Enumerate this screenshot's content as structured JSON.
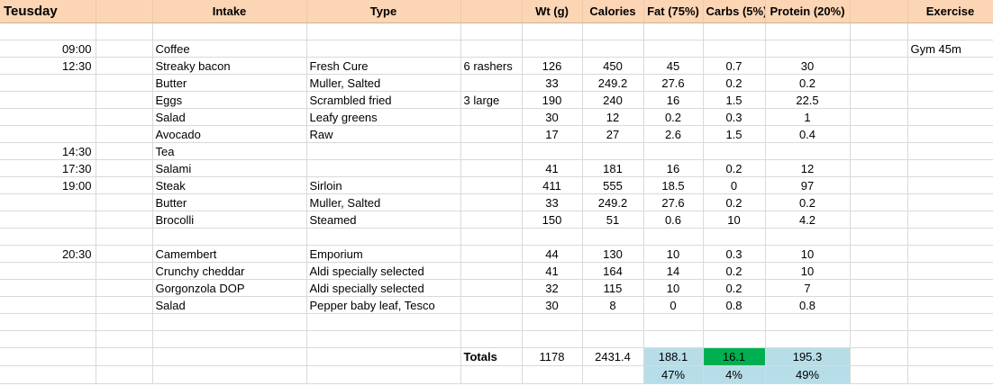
{
  "header": {
    "day": "Teusday",
    "intake": "Intake",
    "type": "Type",
    "wt": "Wt (g)",
    "calories": "Calories",
    "fat": "Fat (75%)",
    "carbs": "Carbs (5%)",
    "protein": "Protein (20%)",
    "exercise": "Exercise"
  },
  "rows": [
    {
      "time": "",
      "intake": "",
      "type": "",
      "qty": "",
      "wt": "",
      "cal": "",
      "fat": "",
      "carbs": "",
      "protein": "",
      "exercise": ""
    },
    {
      "time": "09:00",
      "intake": "Coffee",
      "type": "",
      "qty": "",
      "wt": "",
      "cal": "",
      "fat": "",
      "carbs": "",
      "protein": "",
      "exercise": "Gym 45m"
    },
    {
      "time": "12:30",
      "intake": "Streaky bacon",
      "type": "Fresh Cure",
      "qty": "6 rashers",
      "wt": "126",
      "cal": "450",
      "fat": "45",
      "carbs": "0.7",
      "protein": "30",
      "exercise": ""
    },
    {
      "time": "",
      "intake": "Butter",
      "type": "Muller, Salted",
      "qty": "",
      "wt": "33",
      "cal": "249.2",
      "fat": "27.6",
      "carbs": "0.2",
      "protein": "0.2",
      "exercise": ""
    },
    {
      "time": "",
      "intake": "Eggs",
      "type": "Scrambled fried",
      "qty": "3 large",
      "wt": "190",
      "cal": "240",
      "fat": "16",
      "carbs": "1.5",
      "protein": "22.5",
      "exercise": ""
    },
    {
      "time": "",
      "intake": "Salad",
      "type": "Leafy greens",
      "qty": "",
      "wt": "30",
      "cal": "12",
      "fat": "0.2",
      "carbs": "0.3",
      "protein": "1",
      "exercise": ""
    },
    {
      "time": "",
      "intake": "Avocado",
      "type": "Raw",
      "qty": "",
      "wt": "17",
      "cal": "27",
      "fat": "2.6",
      "carbs": "1.5",
      "protein": "0.4",
      "exercise": ""
    },
    {
      "time": "14:30",
      "intake": "Tea",
      "type": "",
      "qty": "",
      "wt": "",
      "cal": "",
      "fat": "",
      "carbs": "",
      "protein": "",
      "exercise": ""
    },
    {
      "time": "17:30",
      "intake": "Salami",
      "type": "",
      "qty": "",
      "wt": "41",
      "cal": "181",
      "fat": "16",
      "carbs": "0.2",
      "protein": "12",
      "exercise": ""
    },
    {
      "time": "19:00",
      "intake": "Steak",
      "type": "Sirloin",
      "qty": "",
      "wt": "411",
      "cal": "555",
      "fat": "18.5",
      "carbs": "0",
      "protein": "97",
      "exercise": ""
    },
    {
      "time": "",
      "intake": "Butter",
      "type": "Muller, Salted",
      "qty": "",
      "wt": "33",
      "cal": "249.2",
      "fat": "27.6",
      "carbs": "0.2",
      "protein": "0.2",
      "exercise": ""
    },
    {
      "time": "",
      "intake": "Brocolli",
      "type": "Steamed",
      "qty": "",
      "wt": "150",
      "cal": "51",
      "fat": "0.6",
      "carbs": "10",
      "protein": "4.2",
      "exercise": ""
    },
    {
      "time": "",
      "intake": "",
      "type": "",
      "qty": "",
      "wt": "",
      "cal": "",
      "fat": "",
      "carbs": "",
      "protein": "",
      "exercise": ""
    },
    {
      "time": "20:30",
      "intake": "Camembert",
      "type": "Emporium",
      "qty": "",
      "wt": "44",
      "cal": "130",
      "fat": "10",
      "carbs": "0.3",
      "protein": "10",
      "exercise": ""
    },
    {
      "time": "",
      "intake": "Crunchy cheddar",
      "type": "Aldi specially selected",
      "qty": "",
      "wt": "41",
      "cal": "164",
      "fat": "14",
      "carbs": "0.2",
      "protein": "10",
      "exercise": ""
    },
    {
      "time": "",
      "intake": "Gorgonzola DOP",
      "type": "Aldi specially selected",
      "qty": "",
      "wt": "32",
      "cal": "115",
      "fat": "10",
      "carbs": "0.2",
      "protein": "7",
      "exercise": ""
    },
    {
      "time": "",
      "intake": "Salad",
      "type": "Pepper baby leaf, Tesco",
      "qty": "",
      "wt": "30",
      "cal": "8",
      "fat": "0",
      "carbs": "0.8",
      "protein": "0.8",
      "exercise": ""
    },
    {
      "time": "",
      "intake": "",
      "type": "",
      "qty": "",
      "wt": "",
      "cal": "",
      "fat": "",
      "carbs": "",
      "protein": "",
      "exercise": ""
    },
    {
      "time": "",
      "intake": "",
      "type": "",
      "qty": "",
      "wt": "",
      "cal": "",
      "fat": "",
      "carbs": "",
      "protein": "",
      "exercise": ""
    }
  ],
  "totals": {
    "label": "Totals",
    "wt": "1178",
    "cal": "2431.4",
    "fat": "188.1",
    "carbs": "16.1",
    "protein": "195.3"
  },
  "percent": {
    "fat": "47%",
    "carbs": "4%",
    "protein": "49%"
  },
  "colors": {
    "header_bg": "#fcd5b4",
    "totals_bg": "#b7dee8",
    "carbs_total_bg": "#00b050"
  }
}
